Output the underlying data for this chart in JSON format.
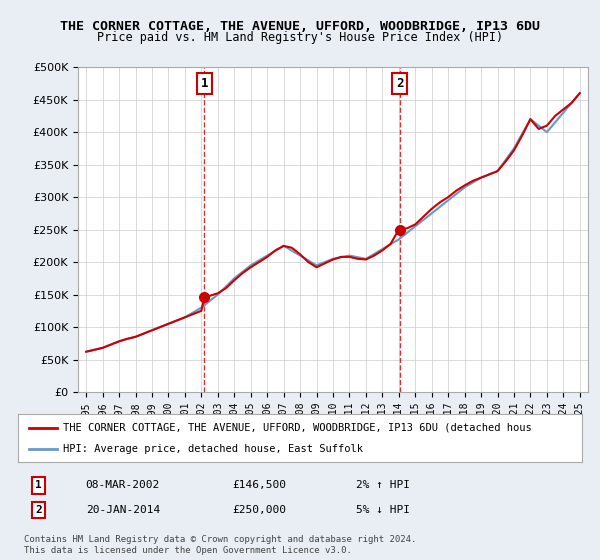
{
  "title1": "THE CORNER COTTAGE, THE AVENUE, UFFORD, WOODBRIDGE, IP13 6DU",
  "title2": "Price paid vs. HM Land Registry's House Price Index (HPI)",
  "legend_line1": "THE CORNER COTTAGE, THE AVENUE, UFFORD, WOODBRIDGE, IP13 6DU (detached hous",
  "legend_line2": "HPI: Average price, detached house, East Suffolk",
  "annotation1_label": "1",
  "annotation1_date": "08-MAR-2002",
  "annotation1_price": "£146,500",
  "annotation1_hpi": "2% ↑ HPI",
  "annotation2_label": "2",
  "annotation2_date": "20-JAN-2014",
  "annotation2_price": "£250,000",
  "annotation2_hpi": "5% ↓ HPI",
  "footnote1": "Contains HM Land Registry data © Crown copyright and database right 2024.",
  "footnote2": "This data is licensed under the Open Government Licence v3.0.",
  "hpi_color": "#6699cc",
  "price_color": "#cc0000",
  "annotation_box_color": "#cc0000",
  "bg_color": "#e8eef4",
  "plot_bg": "#ffffff",
  "ylim": [
    0,
    500000
  ],
  "yticks": [
    0,
    50000,
    100000,
    150000,
    200000,
    250000,
    300000,
    350000,
    400000,
    450000,
    500000
  ],
  "sale1_year": 2002.18,
  "sale1_price": 146500,
  "sale2_year": 2014.05,
  "sale2_price": 250000,
  "hpi_years": [
    1995,
    1996,
    1997,
    1998,
    1999,
    2000,
    2001,
    2002,
    2003,
    2004,
    2005,
    2006,
    2007,
    2008,
    2009,
    2010,
    2011,
    2012,
    2013,
    2014,
    2015,
    2016,
    2017,
    2018,
    2019,
    2020,
    2021,
    2022,
    2023,
    2024,
    2025
  ],
  "hpi_values": [
    62000,
    68000,
    78000,
    85000,
    95000,
    105000,
    115000,
    130000,
    150000,
    175000,
    195000,
    210000,
    225000,
    210000,
    195000,
    205000,
    210000,
    205000,
    220000,
    235000,
    255000,
    275000,
    295000,
    315000,
    330000,
    340000,
    375000,
    420000,
    400000,
    430000,
    460000
  ],
  "price_years": [
    1995,
    1995.5,
    1996,
    1996.5,
    1997,
    1997.5,
    1998,
    1998.5,
    1999,
    1999.5,
    2000,
    2000.5,
    2001,
    2001.5,
    2002,
    2002.18,
    2002.5,
    2003,
    2003.5,
    2004,
    2004.5,
    2005,
    2005.5,
    2006,
    2006.5,
    2007,
    2007.5,
    2008,
    2008.5,
    2009,
    2009.5,
    2010,
    2010.5,
    2011,
    2011.5,
    2012,
    2012.5,
    2013,
    2013.5,
    2014,
    2014.05,
    2014.5,
    2015,
    2015.5,
    2016,
    2016.5,
    2017,
    2017.5,
    2018,
    2018.5,
    2019,
    2019.5,
    2020,
    2020.5,
    2021,
    2021.5,
    2022,
    2022.5,
    2023,
    2023.5,
    2024,
    2024.5,
    2025
  ],
  "price_values": [
    62000,
    65000,
    68000,
    73000,
    78000,
    82000,
    85000,
    90000,
    95000,
    100000,
    105000,
    110000,
    115000,
    120000,
    125000,
    146500,
    148000,
    152000,
    160000,
    172000,
    183000,
    192000,
    200000,
    208000,
    218000,
    225000,
    222000,
    212000,
    200000,
    192000,
    198000,
    204000,
    208000,
    208000,
    205000,
    204000,
    210000,
    218000,
    228000,
    250000,
    250000,
    252000,
    258000,
    270000,
    282000,
    292000,
    300000,
    310000,
    318000,
    325000,
    330000,
    335000,
    340000,
    355000,
    372000,
    395000,
    420000,
    405000,
    410000,
    425000,
    435000,
    445000,
    460000
  ]
}
